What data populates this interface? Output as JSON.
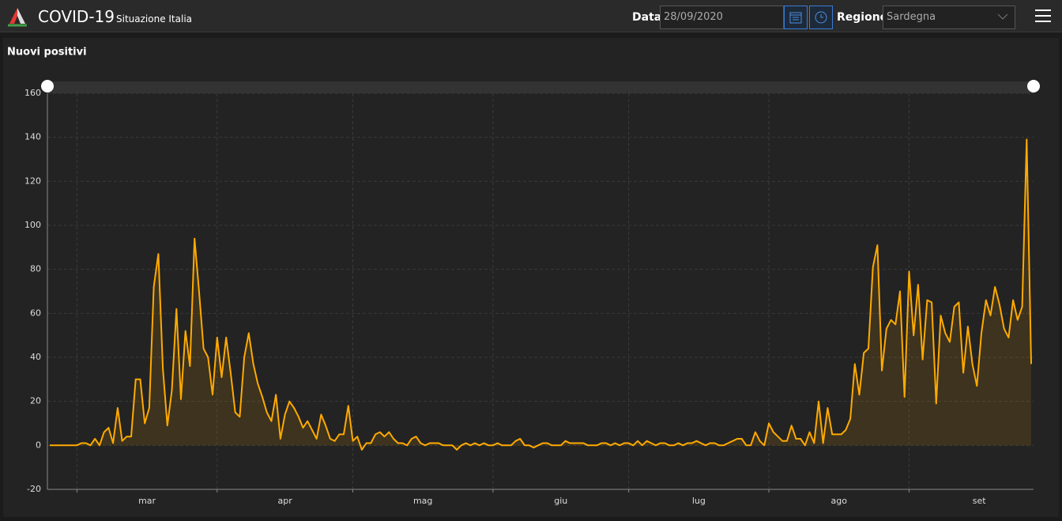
{
  "header": {
    "title": "COVID-19",
    "subtitle": "Situazione Italia",
    "date_label": "Data",
    "date_value": "28/09/2020",
    "region_label": "Regione",
    "region_value": "Sardegna"
  },
  "chart_data": {
    "type": "area",
    "title": "Nuovi positivi",
    "color": "#ffaa00",
    "grid": true,
    "xlim": [
      0,
      217
    ],
    "xticks": [
      {
        "value": 6,
        "label": "mar"
      },
      {
        "value": 37,
        "label": "apr"
      },
      {
        "value": 67,
        "label": "mag"
      },
      {
        "value": 98,
        "label": "giu"
      },
      {
        "value": 128,
        "label": "lug"
      },
      {
        "value": 159,
        "label": "ago"
      },
      {
        "value": 190,
        "label": "set"
      }
    ],
    "ylim": [
      -20,
      160
    ],
    "yticks": [
      -20,
      0,
      20,
      40,
      60,
      80,
      100,
      120,
      140,
      160
    ],
    "values": [
      0,
      0,
      0,
      0,
      0,
      0,
      0,
      1,
      1,
      0,
      3,
      0,
      6,
      8,
      1,
      17,
      2,
      4,
      4,
      30,
      30,
      10,
      17,
      72,
      87,
      35,
      9,
      25,
      62,
      21,
      52,
      36,
      94,
      70,
      44,
      40,
      23,
      49,
      31,
      49,
      33,
      15,
      13,
      40,
      51,
      37,
      28,
      22,
      15,
      11,
      23,
      3,
      14,
      20,
      17,
      13,
      8,
      11,
      7,
      3,
      14,
      9,
      3,
      2,
      5,
      5,
      18,
      2,
      4,
      -2,
      1,
      1,
      5,
      6,
      4,
      6,
      3,
      1,
      1,
      0,
      3,
      4,
      1,
      0,
      1,
      1,
      1,
      0,
      0,
      0,
      -2,
      0,
      1,
      0,
      1,
      0,
      1,
      0,
      0,
      1,
      0,
      0,
      0,
      2,
      3,
      0,
      0,
      -1,
      0,
      1,
      1,
      0,
      0,
      0,
      2,
      1,
      1,
      1,
      1,
      0,
      0,
      0,
      1,
      1,
      0,
      1,
      0,
      1,
      1,
      0,
      2,
      0,
      2,
      1,
      0,
      1,
      1,
      0,
      0,
      1,
      0,
      1,
      1,
      2,
      1,
      0,
      1,
      1,
      0,
      0,
      1,
      2,
      3,
      3,
      0,
      0,
      6,
      2,
      0,
      10,
      6,
      4,
      2,
      2,
      9,
      3,
      3,
      0,
      6,
      1,
      20,
      1,
      17,
      5,
      5,
      5,
      7,
      12,
      37,
      23,
      42,
      44,
      81,
      91,
      34,
      53,
      57,
      55,
      70,
      22,
      79,
      50,
      73,
      39,
      66,
      65,
      19,
      59,
      51,
      47,
      63,
      65,
      33,
      54,
      37,
      27,
      51,
      66,
      59,
      72,
      64,
      53,
      49,
      66,
      57,
      63,
      139,
      37
    ]
  }
}
